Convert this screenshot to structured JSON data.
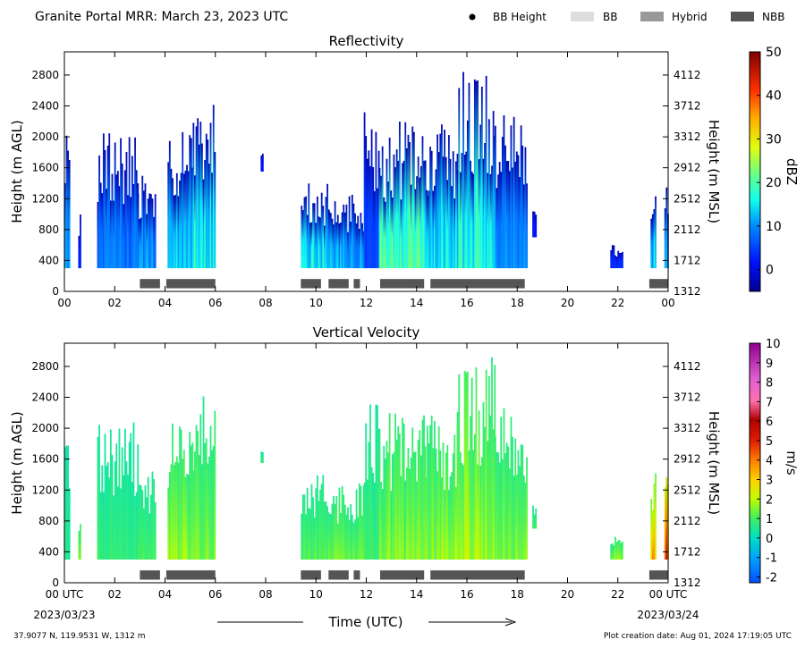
{
  "header": {
    "title": "Granite Portal MRR:  March 23, 2023 UTC",
    "legend": [
      {
        "label": "BB Height",
        "kind": "dot",
        "color": "#000000"
      },
      {
        "label": "BB",
        "kind": "box",
        "color": "#dddddd"
      },
      {
        "label": "Hybrid",
        "kind": "box",
        "color": "#999999"
      },
      {
        "label": "NBB",
        "kind": "box",
        "color": "#555555"
      }
    ]
  },
  "footer": {
    "location": "37.9077 N, 119.9531 W, 1312 m",
    "creation": "Plot creation date: Aug 01, 2024 17:19:05 UTC",
    "xlabel": "Time (UTC)",
    "start_date": "2023/03/23",
    "end_date": "2023/03/24"
  },
  "chart_data": [
    {
      "type": "heatmap",
      "title": "Reflectivity",
      "ylabel": "Height (m AGL)",
      "y2label": "Height (m MSL)",
      "xlabel": "",
      "xlim": [
        0,
        24
      ],
      "ylim": [
        0,
        3100
      ],
      "x_ticks": [
        "00",
        "02",
        "04",
        "06",
        "08",
        "10",
        "12",
        "14",
        "16",
        "18",
        "20",
        "22",
        "00"
      ],
      "y_ticks": [
        0,
        400,
        800,
        1200,
        1600,
        2000,
        2400,
        2800
      ],
      "y2_ticks": [
        1312,
        1712,
        2112,
        2512,
        2912,
        3312,
        3712,
        4112
      ],
      "colorbar": {
        "label": "dBZ",
        "min": -5,
        "max": 50,
        "ticks": [
          0,
          10,
          20,
          30,
          40,
          50
        ]
      },
      "echo_columns": [
        {
          "t0": 0.0,
          "t1": 0.2,
          "top": 2300,
          "base": 300,
          "peak": 12
        },
        {
          "t0": 0.55,
          "t1": 0.65,
          "top": 1000,
          "base": 300,
          "peak": 3
        },
        {
          "t0": 1.3,
          "t1": 2.9,
          "top": 2100,
          "base": 300,
          "peak": 10
        },
        {
          "t0": 2.9,
          "t1": 3.6,
          "top": 1500,
          "base": 300,
          "peak": 12
        },
        {
          "t0": 4.1,
          "t1": 5.1,
          "top": 2100,
          "base": 300,
          "peak": 16
        },
        {
          "t0": 5.1,
          "t1": 6.0,
          "top": 2500,
          "base": 300,
          "peak": 20
        },
        {
          "t0": 7.8,
          "t1": 7.9,
          "top": 1800,
          "base": 1550,
          "peak": 2
        },
        {
          "t0": 9.4,
          "t1": 10.5,
          "top": 1500,
          "base": 300,
          "peak": 18
        },
        {
          "t0": 10.5,
          "t1": 11.9,
          "top": 1300,
          "base": 300,
          "peak": 14
        },
        {
          "t0": 11.9,
          "t1": 12.5,
          "top": 2400,
          "base": 300,
          "peak": 6
        },
        {
          "t0": 12.5,
          "t1": 14.4,
          "top": 2200,
          "base": 300,
          "peak": 22
        },
        {
          "t0": 14.4,
          "t1": 15.6,
          "top": 2200,
          "base": 300,
          "peak": 18
        },
        {
          "t0": 15.6,
          "t1": 17.1,
          "top": 3000,
          "base": 300,
          "peak": 20
        },
        {
          "t0": 17.1,
          "t1": 18.4,
          "top": 2300,
          "base": 300,
          "peak": 12
        },
        {
          "t0": 18.6,
          "t1": 18.75,
          "top": 1050,
          "base": 700,
          "peak": 2
        },
        {
          "t0": 21.7,
          "t1": 22.2,
          "top": 600,
          "base": 300,
          "peak": 4
        },
        {
          "t0": 23.3,
          "t1": 23.5,
          "top": 1450,
          "base": 300,
          "peak": 16
        },
        {
          "t0": 23.85,
          "t1": 24.0,
          "top": 1800,
          "base": 300,
          "peak": 12
        }
      ],
      "bb_segments": [
        {
          "t0": 3.0,
          "t1": 3.8,
          "type": "NBB"
        },
        {
          "t0": 4.05,
          "t1": 6.0,
          "type": "NBB"
        },
        {
          "t0": 9.4,
          "t1": 10.2,
          "type": "NBB"
        },
        {
          "t0": 10.5,
          "t1": 11.3,
          "type": "NBB"
        },
        {
          "t0": 11.5,
          "t1": 11.75,
          "type": "NBB"
        },
        {
          "t0": 12.55,
          "t1": 14.3,
          "type": "NBB"
        },
        {
          "t0": 14.55,
          "t1": 18.3,
          "type": "NBB"
        },
        {
          "t0": 23.25,
          "t1": 24.0,
          "type": "NBB"
        }
      ]
    },
    {
      "type": "heatmap",
      "title": "Vertical Velocity",
      "ylabel": "Height (m AGL)",
      "y2label": "Height (m MSL)",
      "xlabel": "Time (UTC)",
      "xlim": [
        0,
        24
      ],
      "ylim": [
        0,
        3100
      ],
      "x_ticks": [
        "00 UTC",
        "02",
        "04",
        "06",
        "08",
        "10",
        "12",
        "14",
        "16",
        "18",
        "20",
        "22",
        "00 UTC"
      ],
      "y_ticks": [
        0,
        400,
        800,
        1200,
        1600,
        2000,
        2400,
        2800
      ],
      "y2_ticks": [
        1312,
        1712,
        2112,
        2512,
        2912,
        3312,
        3712,
        4112
      ],
      "colorbar": {
        "label": "m/s",
        "min": -2.3,
        "max": 10,
        "ticks": [
          -2,
          -1,
          0,
          1,
          2,
          3,
          4,
          5,
          6,
          7,
          8,
          9,
          10
        ]
      },
      "echo_columns": [
        {
          "t0": 0.0,
          "t1": 0.2,
          "top": 2300,
          "base": 300,
          "peak": 0.6
        },
        {
          "t0": 0.55,
          "t1": 0.65,
          "top": 1000,
          "base": 300,
          "peak": 2.0
        },
        {
          "t0": 1.3,
          "t1": 2.9,
          "top": 2100,
          "base": 300,
          "peak": 0.8
        },
        {
          "t0": 2.9,
          "t1": 3.6,
          "top": 1500,
          "base": 300,
          "peak": 1.0
        },
        {
          "t0": 4.1,
          "t1": 5.1,
          "top": 2100,
          "base": 300,
          "peak": 1.8
        },
        {
          "t0": 5.1,
          "t1": 6.0,
          "top": 2500,
          "base": 300,
          "peak": 1.5
        },
        {
          "t0": 7.8,
          "t1": 7.9,
          "top": 1800,
          "base": 1550,
          "peak": 0.8
        },
        {
          "t0": 9.4,
          "t1": 10.5,
          "top": 1500,
          "base": 300,
          "peak": 1.2
        },
        {
          "t0": 10.5,
          "t1": 11.9,
          "top": 1300,
          "base": 300,
          "peak": 1.4
        },
        {
          "t0": 11.9,
          "t1": 12.5,
          "top": 2400,
          "base": 300,
          "peak": 1.0
        },
        {
          "t0": 12.5,
          "t1": 14.4,
          "top": 2200,
          "base": 300,
          "peak": 1.6
        },
        {
          "t0": 14.4,
          "t1": 15.6,
          "top": 2200,
          "base": 300,
          "peak": 1.7
        },
        {
          "t0": 15.6,
          "t1": 17.1,
          "top": 3000,
          "base": 300,
          "peak": 1.9
        },
        {
          "t0": 17.1,
          "t1": 18.4,
          "top": 2300,
          "base": 300,
          "peak": 1.5
        },
        {
          "t0": 18.6,
          "t1": 18.75,
          "top": 1050,
          "base": 700,
          "peak": 1.0
        },
        {
          "t0": 21.7,
          "t1": 22.2,
          "top": 600,
          "base": 300,
          "peak": 1.5
        },
        {
          "t0": 23.3,
          "t1": 23.5,
          "top": 1450,
          "base": 300,
          "peak": 3.5
        },
        {
          "t0": 23.85,
          "t1": 24.0,
          "top": 1800,
          "base": 300,
          "peak": 5.0
        }
      ],
      "bb_segments": [
        {
          "t0": 3.0,
          "t1": 3.8,
          "type": "NBB"
        },
        {
          "t0": 4.05,
          "t1": 6.0,
          "type": "NBB"
        },
        {
          "t0": 9.4,
          "t1": 10.2,
          "type": "NBB"
        },
        {
          "t0": 10.5,
          "t1": 11.3,
          "type": "NBB"
        },
        {
          "t0": 11.5,
          "t1": 11.75,
          "type": "NBB"
        },
        {
          "t0": 12.55,
          "t1": 14.3,
          "type": "NBB"
        },
        {
          "t0": 14.55,
          "t1": 18.3,
          "type": "NBB"
        },
        {
          "t0": 23.25,
          "t1": 24.0,
          "type": "NBB"
        }
      ]
    }
  ]
}
